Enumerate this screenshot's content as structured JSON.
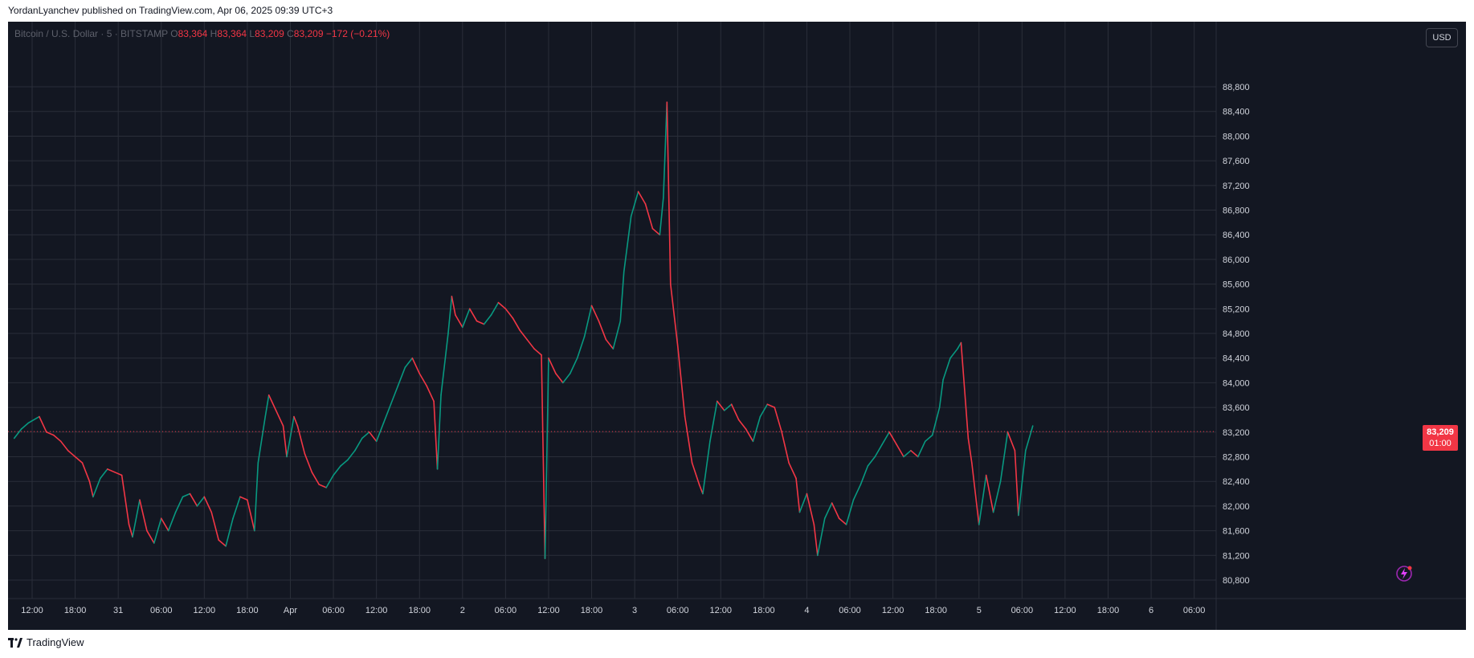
{
  "header": {
    "publish_line": "YordanLyanchev published on TradingView.com, Apr 06, 2025 09:39 UTC+3"
  },
  "legend": {
    "symbol": "Bitcoin / U.S. Dollar · 5 · BITSTAMP",
    "o_label": "O",
    "o_value": "83,364",
    "h_label": "H",
    "h_value": "83,364",
    "l_label": "L",
    "l_value": "83,209",
    "c_label": "C",
    "c_value": "83,209",
    "change": "−172 (−0.21%)"
  },
  "currency_button": "USD",
  "price_tag": {
    "price": "83,209",
    "countdown": "01:00"
  },
  "footer": {
    "brand": "TradingView"
  },
  "colors": {
    "background": "#131722",
    "grid": "#2a2e39",
    "up": "#089981",
    "down": "#f23645",
    "axis_text": "#d1d4dc"
  },
  "chart_data": {
    "type": "line",
    "title": "Bitcoin / U.S. Dollar · 5 · BITSTAMP",
    "xlabel": "",
    "ylabel": "",
    "grid": true,
    "legend_position": "top-left",
    "ylim": [
      80500,
      89400
    ],
    "y_ticks": [
      80800,
      81200,
      81600,
      82000,
      82400,
      82800,
      83200,
      83600,
      84000,
      84400,
      84800,
      85200,
      85600,
      86000,
      86400,
      86800,
      87200,
      87600,
      88000,
      88400,
      88800
    ],
    "y_tick_labels": [
      "80,800",
      "81,200",
      "81,600",
      "82,000",
      "82,400",
      "82,800",
      "83,200",
      "83,600",
      "84,000",
      "84,400",
      "84,800",
      "85,200",
      "85,600",
      "86,000",
      "86,400",
      "86,800",
      "87,200",
      "87,600",
      "88,000",
      "88,400",
      "88,800"
    ],
    "x_range_hours": [
      -2.5,
      139.5
    ],
    "x_ticks": [
      {
        "t": 0,
        "label": "12:00"
      },
      {
        "t": 6,
        "label": "18:00"
      },
      {
        "t": 12,
        "label": "31"
      },
      {
        "t": 18,
        "label": "06:00"
      },
      {
        "t": 24,
        "label": "12:00"
      },
      {
        "t": 30,
        "label": "18:00"
      },
      {
        "t": 36,
        "label": "Apr"
      },
      {
        "t": 42,
        "label": "06:00"
      },
      {
        "t": 48,
        "label": "12:00"
      },
      {
        "t": 54,
        "label": "18:00"
      },
      {
        "t": 60,
        "label": "2"
      },
      {
        "t": 66,
        "label": "06:00"
      },
      {
        "t": 72,
        "label": "12:00"
      },
      {
        "t": 78,
        "label": "18:00"
      },
      {
        "t": 84,
        "label": "3"
      },
      {
        "t": 90,
        "label": "06:00"
      },
      {
        "t": 96,
        "label": "12:00"
      },
      {
        "t": 102,
        "label": "18:00"
      },
      {
        "t": 108,
        "label": "4"
      },
      {
        "t": 114,
        "label": "06:00"
      },
      {
        "t": 120,
        "label": "12:00"
      },
      {
        "t": 126,
        "label": "18:00"
      },
      {
        "t": 132,
        "label": "5"
      },
      {
        "t": 138,
        "label": "06:00"
      },
      {
        "t": 144,
        "label": "12:00"
      },
      {
        "t": 150,
        "label": "18:00"
      },
      {
        "t": 156,
        "label": "6"
      },
      {
        "t": 162,
        "label": "06:00"
      }
    ],
    "last_price": 83209,
    "series": [
      {
        "values": [
          [
            -2.5,
            83100
          ],
          [
            -1.5,
            83250
          ],
          [
            -0.5,
            83350
          ],
          [
            1,
            83450
          ],
          [
            2,
            83200
          ],
          [
            3,
            83150
          ],
          [
            4,
            83050
          ],
          [
            5,
            82900
          ],
          [
            6,
            82800
          ],
          [
            7,
            82700
          ],
          [
            8,
            82400
          ],
          [
            8.5,
            82150
          ],
          [
            9.5,
            82450
          ],
          [
            10.5,
            82600
          ],
          [
            11.5,
            82550
          ],
          [
            12.5,
            82500
          ],
          [
            13.5,
            81700
          ],
          [
            14,
            81500
          ],
          [
            15,
            82100
          ],
          [
            16,
            81600
          ],
          [
            17,
            81400
          ],
          [
            18,
            81800
          ],
          [
            19,
            81600
          ],
          [
            20,
            81900
          ],
          [
            21,
            82150
          ],
          [
            22,
            82200
          ],
          [
            23,
            82000
          ],
          [
            24,
            82150
          ],
          [
            25,
            81900
          ],
          [
            26,
            81450
          ],
          [
            27,
            81350
          ],
          [
            28,
            81800
          ],
          [
            29,
            82150
          ],
          [
            30,
            82100
          ],
          [
            31,
            81600
          ],
          [
            31.5,
            82700
          ],
          [
            32.5,
            83450
          ],
          [
            33,
            83800
          ],
          [
            34,
            83550
          ],
          [
            35,
            83300
          ],
          [
            35.5,
            82800
          ],
          [
            36.5,
            83450
          ],
          [
            37,
            83300
          ],
          [
            38,
            82850
          ],
          [
            39,
            82550
          ],
          [
            40,
            82350
          ],
          [
            41,
            82300
          ],
          [
            42,
            82500
          ],
          [
            43,
            82650
          ],
          [
            44,
            82750
          ],
          [
            45,
            82900
          ],
          [
            46,
            83100
          ],
          [
            47,
            83200
          ],
          [
            48,
            83050
          ],
          [
            49,
            83350
          ],
          [
            50,
            83650
          ],
          [
            51,
            83950
          ],
          [
            52,
            84250
          ],
          [
            53,
            84400
          ],
          [
            54,
            84150
          ],
          [
            55,
            83950
          ],
          [
            56,
            83700
          ],
          [
            56.5,
            82600
          ],
          [
            57,
            83800
          ],
          [
            58,
            84800
          ],
          [
            58.5,
            85400
          ],
          [
            59,
            85100
          ],
          [
            60,
            84900
          ],
          [
            61,
            85200
          ],
          [
            62,
            85000
          ],
          [
            63,
            84950
          ],
          [
            64,
            85100
          ],
          [
            65,
            85300
          ],
          [
            66,
            85200
          ],
          [
            67,
            85050
          ],
          [
            68,
            84850
          ],
          [
            69,
            84700
          ],
          [
            70,
            84550
          ],
          [
            71,
            84450
          ],
          [
            71.5,
            81150
          ],
          [
            72,
            84400
          ],
          [
            73,
            84150
          ],
          [
            74,
            84000
          ],
          [
            75,
            84150
          ],
          [
            76,
            84400
          ],
          [
            77,
            84750
          ],
          [
            78,
            85250
          ],
          [
            79,
            85000
          ],
          [
            80,
            84700
          ],
          [
            81,
            84550
          ],
          [
            82,
            85000
          ],
          [
            82.5,
            85800
          ],
          [
            83.5,
            86700
          ],
          [
            84.5,
            87100
          ],
          [
            85.5,
            86900
          ],
          [
            86.5,
            86500
          ],
          [
            87.5,
            86400
          ],
          [
            88,
            87000
          ],
          [
            88.5,
            88550
          ],
          [
            89,
            85600
          ],
          [
            90,
            84600
          ],
          [
            91,
            83450
          ],
          [
            92,
            82700
          ],
          [
            93,
            82350
          ],
          [
            93.5,
            82200
          ],
          [
            94.5,
            83050
          ],
          [
            95.5,
            83700
          ],
          [
            96.5,
            83550
          ],
          [
            97.5,
            83650
          ],
          [
            98.5,
            83400
          ],
          [
            99.5,
            83250
          ],
          [
            100.5,
            83050
          ],
          [
            101.5,
            83450
          ],
          [
            102.5,
            83650
          ],
          [
            103.5,
            83600
          ],
          [
            104.5,
            83200
          ],
          [
            105.5,
            82700
          ],
          [
            106.5,
            82450
          ],
          [
            107,
            81900
          ],
          [
            108,
            82200
          ],
          [
            109,
            81700
          ],
          [
            109.5,
            81200
          ],
          [
            110.5,
            81800
          ],
          [
            111.5,
            82050
          ],
          [
            112.5,
            81800
          ],
          [
            113.5,
            81700
          ],
          [
            114.5,
            82100
          ],
          [
            115.5,
            82350
          ],
          [
            116.5,
            82650
          ],
          [
            117.5,
            82800
          ],
          [
            118.5,
            83000
          ],
          [
            119.5,
            83200
          ],
          [
            120.5,
            83000
          ],
          [
            121.5,
            82800
          ],
          [
            122.5,
            82900
          ],
          [
            123.5,
            82800
          ],
          [
            124.5,
            83050
          ],
          [
            125.5,
            83150
          ],
          [
            126.5,
            83600
          ],
          [
            127,
            84050
          ],
          [
            128,
            84400
          ],
          [
            129,
            84550
          ],
          [
            129.5,
            84650
          ],
          [
            130.5,
            83100
          ],
          [
            131,
            82700
          ],
          [
            132,
            81700
          ],
          [
            133,
            82500
          ],
          [
            134,
            81900
          ],
          [
            135,
            82400
          ],
          [
            136,
            83200
          ],
          [
            137,
            82900
          ],
          [
            137.5,
            81850
          ],
          [
            138.5,
            82900
          ],
          [
            139.5,
            83300
          ]
        ]
      }
    ]
  }
}
